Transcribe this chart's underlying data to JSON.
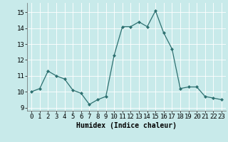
{
  "x": [
    0,
    1,
    2,
    3,
    4,
    5,
    6,
    7,
    8,
    9,
    10,
    11,
    12,
    13,
    14,
    15,
    16,
    17,
    18,
    19,
    20,
    21,
    22,
    23
  ],
  "y": [
    10.0,
    10.2,
    11.3,
    11.0,
    10.8,
    10.1,
    9.9,
    9.2,
    9.5,
    9.7,
    12.3,
    14.1,
    14.1,
    14.4,
    14.1,
    15.1,
    13.7,
    12.7,
    10.2,
    10.3,
    10.3,
    9.7,
    9.6,
    9.5
  ],
  "line_color": "#2d7070",
  "marker_color": "#2d7070",
  "bg_color": "#c8eaea",
  "grid_color": "#b0d8d8",
  "xlabel": "Humidex (Indice chaleur)",
  "ylim": [
    8.8,
    15.6
  ],
  "xlim": [
    -0.5,
    23.5
  ],
  "yticks": [
    9,
    10,
    11,
    12,
    13,
    14,
    15
  ],
  "xticks": [
    0,
    1,
    2,
    3,
    4,
    5,
    6,
    7,
    8,
    9,
    10,
    11,
    12,
    13,
    14,
    15,
    16,
    17,
    18,
    19,
    20,
    21,
    22,
    23
  ],
  "xlabel_fontsize": 7,
  "tick_fontsize": 6.5
}
